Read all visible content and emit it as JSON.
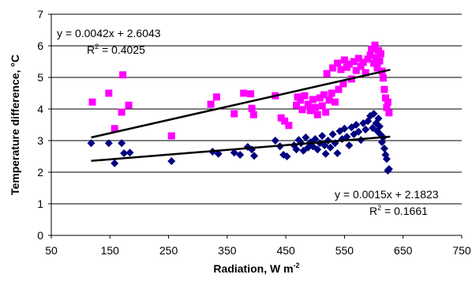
{
  "chart_data": {
    "type": "scatter",
    "xlabel": "Radiation, W m",
    "xlabel_sup": "-2",
    "ylabel": "Temperature difference, ",
    "ylabel_unit": "°C",
    "xlim": [
      50,
      750
    ],
    "ylim": [
      0,
      7
    ],
    "xticks": [
      "50",
      "150",
      "250",
      "350",
      "450",
      "550",
      "650",
      "750"
    ],
    "yticks": [
      "0",
      "1",
      "2",
      "3",
      "4",
      "5",
      "6",
      "7"
    ],
    "grid": "horizontal",
    "series": [
      {
        "marker": "square",
        "color": "#ff00ff",
        "points": [
          [
            120,
            4.22
          ],
          [
            148,
            4.5
          ],
          [
            158,
            3.38
          ],
          [
            172,
            5.08
          ],
          [
            170,
            3.9
          ],
          [
            182,
            4.12
          ],
          [
            255,
            3.15
          ],
          [
            322,
            4.15
          ],
          [
            332,
            4.38
          ],
          [
            362,
            3.85
          ],
          [
            378,
            4.5
          ],
          [
            390,
            4.48
          ],
          [
            392,
            4.02
          ],
          [
            395,
            3.82
          ],
          [
            432,
            4.42
          ],
          [
            442,
            3.72
          ],
          [
            448,
            3.62
          ],
          [
            455,
            3.48
          ],
          [
            468,
            4.12
          ],
          [
            470,
            4.38
          ],
          [
            475,
            4.28
          ],
          [
            478,
            3.98
          ],
          [
            482,
            4.42
          ],
          [
            488,
            4.15
          ],
          [
            492,
            3.95
          ],
          [
            496,
            4.3
          ],
          [
            500,
            4.05
          ],
          [
            504,
            3.82
          ],
          [
            508,
            4.35
          ],
          [
            512,
            4.1
          ],
          [
            515,
            4.45
          ],
          [
            518,
            3.9
          ],
          [
            520,
            5.12
          ],
          [
            524,
            4.28
          ],
          [
            528,
            4.5
          ],
          [
            530,
            5.3
          ],
          [
            534,
            4.22
          ],
          [
            538,
            5.45
          ],
          [
            540,
            4.62
          ],
          [
            544,
            5.25
          ],
          [
            548,
            4.8
          ],
          [
            550,
            5.55
          ],
          [
            554,
            5.32
          ],
          [
            558,
            5.42
          ],
          [
            562,
            4.95
          ],
          [
            566,
            5.5
          ],
          [
            570,
            5.22
          ],
          [
            574,
            5.6
          ],
          [
            578,
            5.35
          ],
          [
            582,
            5.48
          ],
          [
            586,
            5.15
          ],
          [
            590,
            5.58
          ],
          [
            594,
            5.7
          ],
          [
            596,
            5.9
          ],
          [
            600,
            5.45
          ],
          [
            602,
            6.02
          ],
          [
            604,
            5.62
          ],
          [
            606,
            5.3
          ],
          [
            608,
            5.85
          ],
          [
            610,
            5.52
          ],
          [
            612,
            5.75
          ],
          [
            614,
            5.2
          ],
          [
            616,
            4.98
          ],
          [
            618,
            4.62
          ],
          [
            620,
            4.35
          ],
          [
            622,
            4.05
          ],
          [
            624,
            4.22
          ],
          [
            626,
            3.88
          ]
        ]
      },
      {
        "marker": "diamond",
        "color": "#000080",
        "points": [
          [
            118,
            2.92
          ],
          [
            148,
            2.92
          ],
          [
            158,
            2.28
          ],
          [
            170,
            2.92
          ],
          [
            174,
            2.6
          ],
          [
            184,
            2.62
          ],
          [
            255,
            2.35
          ],
          [
            325,
            2.65
          ],
          [
            335,
            2.58
          ],
          [
            362,
            2.62
          ],
          [
            372,
            2.55
          ],
          [
            385,
            2.8
          ],
          [
            392,
            2.72
          ],
          [
            396,
            2.52
          ],
          [
            432,
            3.0
          ],
          [
            440,
            2.82
          ],
          [
            446,
            2.55
          ],
          [
            452,
            2.5
          ],
          [
            464,
            2.85
          ],
          [
            468,
            2.72
          ],
          [
            472,
            3.02
          ],
          [
            476,
            2.92
          ],
          [
            480,
            2.68
          ],
          [
            484,
            3.1
          ],
          [
            488,
            2.78
          ],
          [
            492,
            2.95
          ],
          [
            496,
            2.82
          ],
          [
            500,
            3.05
          ],
          [
            504,
            2.72
          ],
          [
            508,
            2.92
          ],
          [
            512,
            3.15
          ],
          [
            516,
            2.85
          ],
          [
            518,
            2.58
          ],
          [
            522,
            3.0
          ],
          [
            526,
            2.78
          ],
          [
            530,
            3.2
          ],
          [
            534,
            2.92
          ],
          [
            538,
            2.6
          ],
          [
            542,
            3.3
          ],
          [
            546,
            3.05
          ],
          [
            550,
            3.38
          ],
          [
            554,
            3.12
          ],
          [
            558,
            2.85
          ],
          [
            562,
            3.42
          ],
          [
            566,
            3.2
          ],
          [
            570,
            3.5
          ],
          [
            574,
            3.28
          ],
          [
            578,
            3.02
          ],
          [
            582,
            3.55
          ],
          [
            586,
            3.35
          ],
          [
            590,
            3.62
          ],
          [
            594,
            3.78
          ],
          [
            598,
            3.4
          ],
          [
            600,
            3.85
          ],
          [
            604,
            3.55
          ],
          [
            606,
            3.3
          ],
          [
            608,
            3.7
          ],
          [
            610,
            3.45
          ],
          [
            612,
            3.18
          ],
          [
            614,
            2.95
          ],
          [
            616,
            3.1
          ],
          [
            618,
            2.75
          ],
          [
            620,
            2.55
          ],
          [
            622,
            2.42
          ],
          [
            624,
            2.05
          ],
          [
            626,
            2.1
          ]
        ]
      }
    ],
    "trendlines": [
      {
        "slope": 0.0042,
        "intercept": 2.6043,
        "x_range": [
          118,
          628
        ],
        "color": "#000000"
      },
      {
        "slope": 0.0015,
        "intercept": 2.1823,
        "x_range": [
          118,
          628
        ],
        "color": "#000000"
      }
    ],
    "annotations": {
      "eq_top": "y = 0.0042x + 2.6043",
      "r2_top_prefix": "R",
      "r2_top_value": " = 0.4025",
      "eq_bottom": "y = 0.0015x + 2.1823",
      "r2_bottom_prefix": "R",
      "r2_bottom_value": " = 0.1661",
      "r2_sup": "2"
    }
  }
}
